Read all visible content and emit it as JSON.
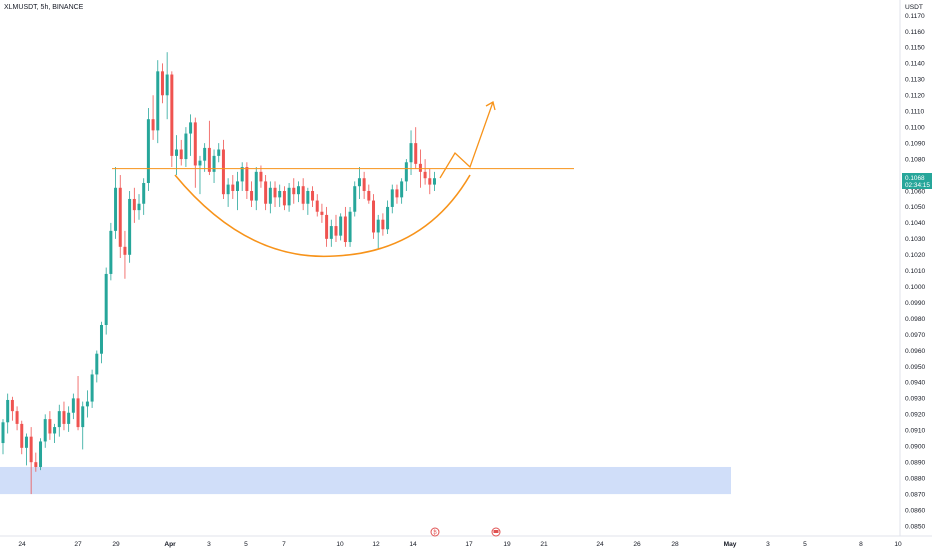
{
  "header": {
    "symbol_label": "XLMUSDT, 5h, BINANCE"
  },
  "colors": {
    "up": "#26a69a",
    "down": "#ef5350",
    "annotation": "#f7931a",
    "zone": "#c8d8f8",
    "price_tag": "#26a69a",
    "event_icon": "#e05050"
  },
  "chart_data": {
    "type": "candlestick",
    "title": "XLMUSDT, 5h, BINANCE",
    "ylabel": "USDT",
    "ylim": [
      0.0845,
      0.1178
    ],
    "y_ticks": [
      "0.1170",
      "0.1160",
      "0.1150",
      "0.1140",
      "0.1130",
      "0.1120",
      "0.1110",
      "0.1100",
      "0.1090",
      "0.1080",
      "0.1070",
      "0.1060",
      "0.1050",
      "0.1040",
      "0.1030",
      "0.1020",
      "0.1010",
      "0.1000",
      "0.0990",
      "0.0980",
      "0.0970",
      "0.0960",
      "0.0950",
      "0.0940",
      "0.0930",
      "0.0920",
      "0.0910",
      "0.0900",
      "0.0890",
      "0.0880",
      "0.0870",
      "0.0860",
      "0.0850"
    ],
    "x_ticks": [
      "24",
      "27",
      "29",
      "Apr",
      "3",
      "5",
      "7",
      "10",
      "12",
      "14",
      "17",
      "19",
      "21",
      "24",
      "26",
      "28",
      "May",
      "3",
      "5",
      "8",
      "10"
    ],
    "candles": [
      {
        "o": 0.0902,
        "h": 0.0917,
        "l": 0.0895,
        "c": 0.0915
      },
      {
        "o": 0.0915,
        "h": 0.0933,
        "l": 0.0908,
        "c": 0.0929
      },
      {
        "o": 0.0929,
        "h": 0.0931,
        "l": 0.0916,
        "c": 0.0922
      },
      {
        "o": 0.0922,
        "h": 0.0925,
        "l": 0.091,
        "c": 0.0914
      },
      {
        "o": 0.0914,
        "h": 0.0916,
        "l": 0.0895,
        "c": 0.0899
      },
      {
        "o": 0.0899,
        "h": 0.0908,
        "l": 0.0888,
        "c": 0.0906
      },
      {
        "o": 0.0906,
        "h": 0.0912,
        "l": 0.087,
        "c": 0.089
      },
      {
        "o": 0.089,
        "h": 0.0896,
        "l": 0.0884,
        "c": 0.0887
      },
      {
        "o": 0.0887,
        "h": 0.0905,
        "l": 0.0885,
        "c": 0.0903
      },
      {
        "o": 0.0903,
        "h": 0.092,
        "l": 0.0899,
        "c": 0.0917
      },
      {
        "o": 0.0917,
        "h": 0.0922,
        "l": 0.0904,
        "c": 0.0908
      },
      {
        "o": 0.0908,
        "h": 0.0914,
        "l": 0.0902,
        "c": 0.0912
      },
      {
        "o": 0.0912,
        "h": 0.0926,
        "l": 0.0906,
        "c": 0.0922
      },
      {
        "o": 0.0922,
        "h": 0.0928,
        "l": 0.091,
        "c": 0.0914
      },
      {
        "o": 0.0914,
        "h": 0.0925,
        "l": 0.0909,
        "c": 0.0921
      },
      {
        "o": 0.0921,
        "h": 0.0933,
        "l": 0.0917,
        "c": 0.093
      },
      {
        "o": 0.093,
        "h": 0.0944,
        "l": 0.091,
        "c": 0.0912
      },
      {
        "o": 0.0912,
        "h": 0.0928,
        "l": 0.0898,
        "c": 0.0925
      },
      {
        "o": 0.0925,
        "h": 0.0935,
        "l": 0.0918,
        "c": 0.0928
      },
      {
        "o": 0.0928,
        "h": 0.0948,
        "l": 0.0924,
        "c": 0.0945
      },
      {
        "o": 0.0945,
        "h": 0.096,
        "l": 0.094,
        "c": 0.0958
      },
      {
        "o": 0.0958,
        "h": 0.0978,
        "l": 0.0952,
        "c": 0.0976
      },
      {
        "o": 0.0976,
        "h": 0.1012,
        "l": 0.097,
        "c": 0.1008
      },
      {
        "o": 0.1008,
        "h": 0.104,
        "l": 0.1004,
        "c": 0.1035
      },
      {
        "o": 0.1035,
        "h": 0.1075,
        "l": 0.103,
        "c": 0.1062
      },
      {
        "o": 0.1062,
        "h": 0.107,
        "l": 0.1018,
        "c": 0.1025
      },
      {
        "o": 0.1025,
        "h": 0.1035,
        "l": 0.1005,
        "c": 0.102
      },
      {
        "o": 0.102,
        "h": 0.106,
        "l": 0.1015,
        "c": 0.1055
      },
      {
        "o": 0.1055,
        "h": 0.1062,
        "l": 0.104,
        "c": 0.1048
      },
      {
        "o": 0.1048,
        "h": 0.1058,
        "l": 0.1042,
        "c": 0.1052
      },
      {
        "o": 0.1052,
        "h": 0.1068,
        "l": 0.1045,
        "c": 0.1065
      },
      {
        "o": 0.1065,
        "h": 0.1112,
        "l": 0.106,
        "c": 0.1105
      },
      {
        "o": 0.1105,
        "h": 0.112,
        "l": 0.1092,
        "c": 0.1098
      },
      {
        "o": 0.1098,
        "h": 0.1142,
        "l": 0.109,
        "c": 0.1135
      },
      {
        "o": 0.1135,
        "h": 0.114,
        "l": 0.1115,
        "c": 0.112
      },
      {
        "o": 0.112,
        "h": 0.1147,
        "l": 0.1105,
        "c": 0.1133
      },
      {
        "o": 0.1133,
        "h": 0.1135,
        "l": 0.1075,
        "c": 0.1082
      },
      {
        "o": 0.1082,
        "h": 0.1095,
        "l": 0.107,
        "c": 0.1086
      },
      {
        "o": 0.1086,
        "h": 0.1092,
        "l": 0.1076,
        "c": 0.108
      },
      {
        "o": 0.108,
        "h": 0.11,
        "l": 0.1075,
        "c": 0.1096
      },
      {
        "o": 0.1096,
        "h": 0.1108,
        "l": 0.1082,
        "c": 0.1103
      },
      {
        "o": 0.1103,
        "h": 0.1106,
        "l": 0.1062,
        "c": 0.1076
      },
      {
        "o": 0.1076,
        "h": 0.1082,
        "l": 0.1058,
        "c": 0.1079
      },
      {
        "o": 0.1079,
        "h": 0.109,
        "l": 0.1072,
        "c": 0.1087
      },
      {
        "o": 0.1087,
        "h": 0.1104,
        "l": 0.107,
        "c": 0.1072
      },
      {
        "o": 0.1072,
        "h": 0.1086,
        "l": 0.1065,
        "c": 0.1082
      },
      {
        "o": 0.1082,
        "h": 0.109,
        "l": 0.1078,
        "c": 0.1086
      },
      {
        "o": 0.1086,
        "h": 0.1092,
        "l": 0.1055,
        "c": 0.1058
      },
      {
        "o": 0.1058,
        "h": 0.1068,
        "l": 0.105,
        "c": 0.1064
      },
      {
        "o": 0.1064,
        "h": 0.107,
        "l": 0.1055,
        "c": 0.106
      },
      {
        "o": 0.106,
        "h": 0.1072,
        "l": 0.1048,
        "c": 0.1066
      },
      {
        "o": 0.1066,
        "h": 0.1078,
        "l": 0.106,
        "c": 0.1075
      },
      {
        "o": 0.1075,
        "h": 0.1078,
        "l": 0.1055,
        "c": 0.106
      },
      {
        "o": 0.106,
        "h": 0.1066,
        "l": 0.105,
        "c": 0.1054
      },
      {
        "o": 0.1054,
        "h": 0.1075,
        "l": 0.1048,
        "c": 0.1072
      },
      {
        "o": 0.1072,
        "h": 0.1076,
        "l": 0.1062,
        "c": 0.1066
      },
      {
        "o": 0.1066,
        "h": 0.107,
        "l": 0.1048,
        "c": 0.1052
      },
      {
        "o": 0.1052,
        "h": 0.1066,
        "l": 0.1046,
        "c": 0.1062
      },
      {
        "o": 0.1062,
        "h": 0.1066,
        "l": 0.105,
        "c": 0.1056
      },
      {
        "o": 0.1056,
        "h": 0.1064,
        "l": 0.105,
        "c": 0.106
      },
      {
        "o": 0.106,
        "h": 0.1063,
        "l": 0.1048,
        "c": 0.1051
      },
      {
        "o": 0.1051,
        "h": 0.1065,
        "l": 0.1047,
        "c": 0.1062
      },
      {
        "o": 0.1062,
        "h": 0.1068,
        "l": 0.1052,
        "c": 0.1058
      },
      {
        "o": 0.1058,
        "h": 0.1066,
        "l": 0.1053,
        "c": 0.1063
      },
      {
        "o": 0.1063,
        "h": 0.1068,
        "l": 0.1048,
        "c": 0.1052
      },
      {
        "o": 0.1052,
        "h": 0.1062,
        "l": 0.1045,
        "c": 0.106
      },
      {
        "o": 0.106,
        "h": 0.1063,
        "l": 0.105,
        "c": 0.1054
      },
      {
        "o": 0.1054,
        "h": 0.1058,
        "l": 0.1044,
        "c": 0.1047
      },
      {
        "o": 0.1047,
        "h": 0.1052,
        "l": 0.104,
        "c": 0.1045
      },
      {
        "o": 0.1045,
        "h": 0.105,
        "l": 0.1025,
        "c": 0.103
      },
      {
        "o": 0.103,
        "h": 0.1042,
        "l": 0.1025,
        "c": 0.1038
      },
      {
        "o": 0.1038,
        "h": 0.1045,
        "l": 0.1028,
        "c": 0.1032
      },
      {
        "o": 0.1032,
        "h": 0.1046,
        "l": 0.1029,
        "c": 0.1044
      },
      {
        "o": 0.1044,
        "h": 0.105,
        "l": 0.1025,
        "c": 0.1028
      },
      {
        "o": 0.1028,
        "h": 0.105,
        "l": 0.1025,
        "c": 0.1047
      },
      {
        "o": 0.1047,
        "h": 0.1066,
        "l": 0.1044,
        "c": 0.1063
      },
      {
        "o": 0.1063,
        "h": 0.1075,
        "l": 0.1055,
        "c": 0.1068
      },
      {
        "o": 0.1068,
        "h": 0.1072,
        "l": 0.1055,
        "c": 0.106
      },
      {
        "o": 0.106,
        "h": 0.1064,
        "l": 0.1052,
        "c": 0.1054
      },
      {
        "o": 0.1054,
        "h": 0.1058,
        "l": 0.103,
        "c": 0.1034
      },
      {
        "o": 0.1034,
        "h": 0.1045,
        "l": 0.1024,
        "c": 0.1042
      },
      {
        "o": 0.1042,
        "h": 0.1046,
        "l": 0.1032,
        "c": 0.1036
      },
      {
        "o": 0.1036,
        "h": 0.1054,
        "l": 0.1033,
        "c": 0.105
      },
      {
        "o": 0.105,
        "h": 0.1064,
        "l": 0.1046,
        "c": 0.1061
      },
      {
        "o": 0.1061,
        "h": 0.1064,
        "l": 0.1052,
        "c": 0.1056
      },
      {
        "o": 0.1056,
        "h": 0.1068,
        "l": 0.1052,
        "c": 0.1066
      },
      {
        "o": 0.1066,
        "h": 0.108,
        "l": 0.106,
        "c": 0.1078
      },
      {
        "o": 0.1078,
        "h": 0.1098,
        "l": 0.107,
        "c": 0.109
      },
      {
        "o": 0.109,
        "h": 0.11,
        "l": 0.1074,
        "c": 0.1077
      },
      {
        "o": 0.1077,
        "h": 0.1086,
        "l": 0.1062,
        "c": 0.1072
      },
      {
        "o": 0.1072,
        "h": 0.108,
        "l": 0.1064,
        "c": 0.1068
      },
      {
        "o": 0.1068,
        "h": 0.1074,
        "l": 0.1058,
        "c": 0.1064
      },
      {
        "o": 0.1064,
        "h": 0.1072,
        "l": 0.106,
        "c": 0.1068
      }
    ],
    "resistance_level": 0.1074,
    "support_zone": [
      0.087,
      0.0887
    ],
    "current_price": "0.1068",
    "countdown": "02:34:15"
  },
  "icons": {
    "event_1": "economic-event-icon",
    "event_2": "earnings-flag-icon"
  }
}
